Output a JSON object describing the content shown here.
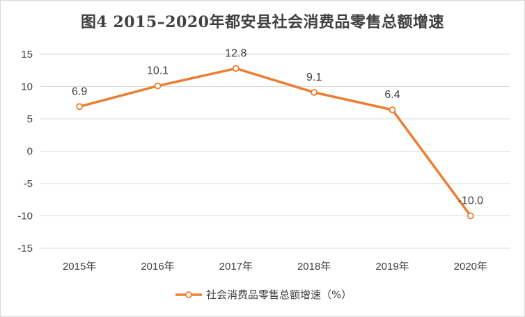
{
  "chart_data": {
    "type": "line",
    "title": "图4   2015–2020年都安县社会消费品零售总额增速",
    "categories": [
      "2015年",
      "2016年",
      "2017年",
      "2018年",
      "2019年",
      "2020年"
    ],
    "series": [
      {
        "name": "社会消费品零售总额增速（%）",
        "values": [
          6.9,
          10.1,
          12.8,
          9.1,
          6.4,
          -10.0
        ],
        "color": "#ed7d31"
      }
    ],
    "data_labels": [
      "6.9",
      "10.1",
      "12.8",
      "9.1",
      "6.4",
      "-10.0"
    ],
    "yticks": [
      "15",
      "10",
      "5",
      "0",
      "-5",
      "-10",
      "-15"
    ],
    "ylim": [
      -15,
      15
    ],
    "grid": true,
    "legend_position": "bottom"
  }
}
